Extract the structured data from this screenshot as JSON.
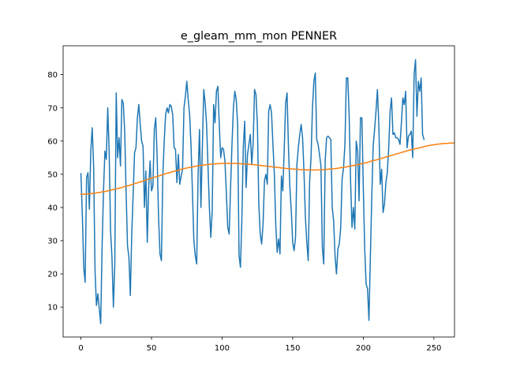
{
  "chart_data": {
    "type": "line",
    "title": "e_gleam_mm_mon PENNER",
    "xlabel": "",
    "ylabel": "",
    "xlim": [
      -12.6,
      264.6
    ],
    "ylim": [
      1.0,
      88.7
    ],
    "xticks": [
      0,
      50,
      100,
      150,
      200,
      250
    ],
    "yticks": [
      10,
      20,
      30,
      40,
      50,
      60,
      70,
      80
    ],
    "grid": false,
    "colors": {
      "series_1": "#1f77b4",
      "series_2": "#ff7f0e"
    },
    "series": [
      {
        "values": [
          50.2,
          38.0,
          22.0,
          17.5,
          49.0,
          50.5,
          39.5,
          57.0,
          64.0,
          52.5,
          21.0,
          10.5,
          14.0,
          9.5,
          5.0,
          28.0,
          45.0,
          57.0,
          54.5,
          70.0,
          57.0,
          33.0,
          25.0,
          10.0,
          23.0,
          74.5,
          55.0,
          61.0,
          52.5,
          72.5,
          71.5,
          63.0,
          45.0,
          28.5,
          25.0,
          13.5,
          32.0,
          44.0,
          56.5,
          58.0,
          67.0,
          71.0,
          65.0,
          60.0,
          58.5,
          40.0,
          51.0,
          29.5,
          46.0,
          54.0,
          45.0,
          46.5,
          63.5,
          67.0,
          55.0,
          37.0,
          26.0,
          24.0,
          49.5,
          60.0,
          68.0,
          70.0,
          68.5,
          71.0,
          70.5,
          68.0,
          58.0,
          57.5,
          47.5,
          56.0,
          47.0,
          49.5,
          51.5,
          70.0,
          73.5,
          78.0,
          72.5,
          68.0,
          58.5,
          44.5,
          30.0,
          25.5,
          23.0,
          50.0,
          63.5,
          40.0,
          58.0,
          75.5,
          71.5,
          65.0,
          52.5,
          40.0,
          31.0,
          39.0,
          71.0,
          65.5,
          75.0,
          76.5,
          65.0,
          55.0,
          58.0,
          57.5,
          54.0,
          44.5,
          34.0,
          32.0,
          46.0,
          59.0,
          70.0,
          75.0,
          72.5,
          65.0,
          25.5,
          22.0,
          36.5,
          58.0,
          66.0,
          46.0,
          56.0,
          59.0,
          62.0,
          53.0,
          59.5,
          75.5,
          74.0,
          65.0,
          41.0,
          32.0,
          29.0,
          35.0,
          48.0,
          50.0,
          47.0,
          69.0,
          71.0,
          68.5,
          59.0,
          50.0,
          35.0,
          26.5,
          30.5,
          26.0,
          49.5,
          45.0,
          57.5,
          71.5,
          74.5,
          58.0,
          46.0,
          39.0,
          29.5,
          27.0,
          31.0,
          53.0,
          58.0,
          62.0,
          65.0,
          61.0,
          50.5,
          37.0,
          29.5,
          24.0,
          48.0,
          55.0,
          70.0,
          78.0,
          80.5,
          60.5,
          59.0,
          56.0,
          52.5,
          28.0,
          23.0,
          54.0,
          61.0,
          61.5,
          61.0,
          60.5,
          40.0,
          36.0,
          25.5,
          20.0,
          27.5,
          29.0,
          34.0,
          48.5,
          52.0,
          59.0,
          79.0,
          79.0,
          67.5,
          48.0,
          34.0,
          40.0,
          33.5,
          60.0,
          57.0,
          42.0,
          67.0,
          67.0,
          46.0,
          27.5,
          17.0,
          15.5,
          6.0,
          25.0,
          43.0,
          58.5,
          63.5,
          69.0,
          75.5,
          65.0,
          47.0,
          51.5,
          38.5,
          41.0,
          47.5,
          50.5,
          58.0,
          69.0,
          73.0,
          62.0,
          62.5,
          61.0,
          61.0,
          60.5,
          59.0,
          65.5,
          73.0,
          71.0,
          75.0,
          58.0,
          61.5,
          62.0,
          63.0,
          55.0,
          80.0,
          84.5,
          67.5,
          78.0,
          75.0,
          79.0,
          62.0,
          60.5
        ]
      },
      {
        "values": [
          44.0,
          44.0,
          44.0,
          44.0,
          44.1,
          44.1,
          44.1,
          44.2,
          44.2,
          44.3,
          44.3,
          44.4,
          44.5,
          44.5,
          44.6,
          44.7,
          44.8,
          44.8,
          44.9,
          45.0,
          45.1,
          45.2,
          45.3,
          45.4,
          45.5,
          45.6,
          45.7,
          45.8,
          45.9,
          46.0,
          46.2,
          46.3,
          46.4,
          46.5,
          46.6,
          46.8,
          46.9,
          47.0,
          47.2,
          47.3,
          47.4,
          47.6,
          47.7,
          47.8,
          48.0,
          48.1,
          48.3,
          48.4,
          48.5,
          48.7,
          48.8,
          49.0,
          49.1,
          49.2,
          49.4,
          49.5,
          49.6,
          49.8,
          49.9,
          50.0,
          50.2,
          50.3,
          50.4,
          50.5,
          50.7,
          50.8,
          50.9,
          51.0,
          51.1,
          51.2,
          51.4,
          51.5,
          51.6,
          51.7,
          51.8,
          51.9,
          52.0,
          52.1,
          52.1,
          52.2,
          52.3,
          52.4,
          52.5,
          52.5,
          52.6,
          52.7,
          52.7,
          52.8,
          52.8,
          52.9,
          52.9,
          53.0,
          53.0,
          53.1,
          53.1,
          53.1,
          53.2,
          53.2,
          53.2,
          53.2,
          53.3,
          53.3,
          53.3,
          53.3,
          53.3,
          53.3,
          53.3,
          53.3,
          53.3,
          53.3,
          53.3,
          53.2,
          53.2,
          53.2,
          53.2,
          53.1,
          53.1,
          53.1,
          53.1,
          53.0,
          53.0,
          52.9,
          52.9,
          52.9,
          52.8,
          52.8,
          52.7,
          52.7,
          52.6,
          52.6,
          52.5,
          52.5,
          52.4,
          52.4,
          52.3,
          52.3,
          52.2,
          52.2,
          52.1,
          52.1,
          52.0,
          52.0,
          51.9,
          51.9,
          51.8,
          51.8,
          51.7,
          51.7,
          51.7,
          51.6,
          51.6,
          51.6,
          51.5,
          51.5,
          51.5,
          51.4,
          51.4,
          51.4,
          51.4,
          51.4,
          51.3,
          51.3,
          51.3,
          51.3,
          51.3,
          51.3,
          51.3,
          51.3,
          51.3,
          51.4,
          51.4,
          51.4,
          51.4,
          51.4,
          51.5,
          51.5,
          51.6,
          51.6,
          51.6,
          51.7,
          51.7,
          51.8,
          51.8,
          51.9,
          52.0,
          52.0,
          52.1,
          52.2,
          52.2,
          52.3,
          52.4,
          52.5,
          52.6,
          52.6,
          52.7,
          52.8,
          52.9,
          53.0,
          53.1,
          53.2,
          53.3,
          53.4,
          53.5,
          53.6,
          53.7,
          53.9,
          54.0,
          54.1,
          54.2,
          54.3,
          54.4,
          54.6,
          54.7,
          54.8,
          54.9,
          55.1,
          55.2,
          55.3,
          55.4,
          55.6,
          55.7,
          55.8,
          55.9,
          56.1,
          56.2,
          56.3,
          56.4,
          56.6,
          56.7,
          56.8,
          56.9,
          57.1,
          57.2,
          57.3,
          57.4,
          57.5,
          57.6,
          57.7,
          57.8,
          57.9,
          58.0,
          58.1,
          58.2,
          58.3,
          58.4,
          58.5,
          58.6,
          58.7,
          58.8,
          58.8,
          58.9,
          59.0,
          59.0,
          59.1,
          59.1,
          59.2,
          59.2,
          59.3,
          59.3,
          59.3,
          59.3,
          59.4,
          59.4,
          59.4,
          59.4
        ]
      }
    ]
  }
}
